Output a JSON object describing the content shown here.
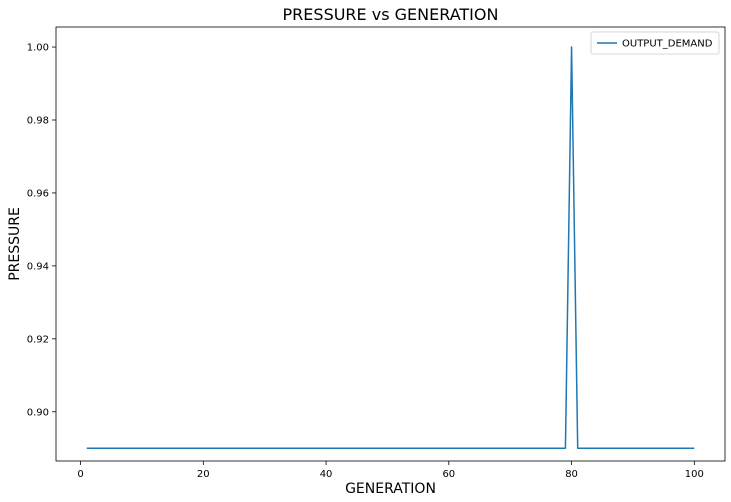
{
  "chart_data": {
    "type": "line",
    "title": "PRESSURE vs GENERATION",
    "xlabel": "GENERATION",
    "ylabel": "PRESSURE",
    "xlim": [
      -4,
      105
    ],
    "ylim": [
      0.8865,
      1.0055
    ],
    "xticks": [
      0,
      20,
      40,
      60,
      80,
      100
    ],
    "yticks": [
      0.9,
      0.92,
      0.94,
      0.96,
      0.98,
      1.0
    ],
    "ytick_labels": [
      "0.90",
      "0.92",
      "0.94",
      "0.96",
      "0.98",
      "1.00"
    ],
    "grid": false,
    "legend_position": "top-right",
    "series": [
      {
        "name": "OUTPUT_DEMAND",
        "color": "#1f77b4",
        "x": [
          1,
          79,
          80,
          81,
          100
        ],
        "y": [
          0.89,
          0.89,
          1.0,
          0.89,
          0.89
        ]
      }
    ]
  }
}
